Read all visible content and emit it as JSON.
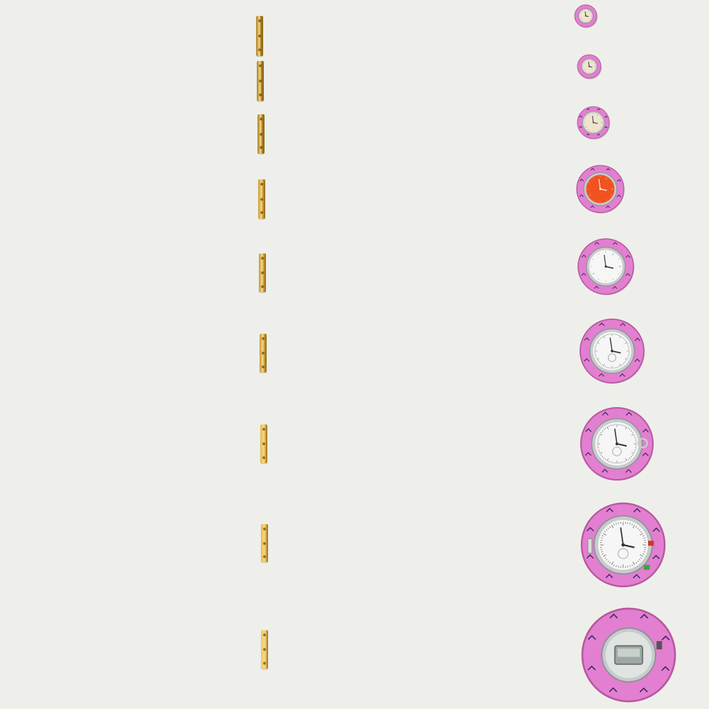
{
  "scene": {
    "background": "#eeefeb",
    "description_items": [
      "brass-plate",
      "pink-stopwatch"
    ]
  },
  "colors": {
    "brass_dark": "#a6781c",
    "brass_mid": "#c9962f",
    "brass_light": "#e6b54a",
    "brass_pale": "#f0c660",
    "pink": "#e27fd0",
    "pink_dark": "#b9579f",
    "chrome": "#c8cacd",
    "dial_cream": "#efe4cf",
    "dial_orange": "#f0531f",
    "dial_white": "#f6f6f6",
    "mark_purple": "#3f2a63",
    "button_red": "#d9322a",
    "button_green": "#3aa345"
  },
  "plates": [
    {
      "tone": "brass_dark"
    },
    {
      "tone": "brass_dark"
    },
    {
      "tone": "brass_dark"
    },
    {
      "tone": "brass_mid"
    },
    {
      "tone": "brass_mid"
    },
    {
      "tone": "brass_mid"
    },
    {
      "tone": "brass_light"
    },
    {
      "tone": "brass_light"
    },
    {
      "tone": "brass_pale"
    }
  ],
  "watches": [
    {
      "dial": "cream",
      "style": "simple"
    },
    {
      "dial": "cream",
      "style": "simple"
    },
    {
      "dial": "cream",
      "style": "simple"
    },
    {
      "dial": "orange",
      "style": "numerals"
    },
    {
      "dial": "white",
      "style": "hands"
    },
    {
      "dial": "white",
      "style": "stopwatch"
    },
    {
      "dial": "white",
      "style": "stopwatch-crown"
    },
    {
      "dial": "white",
      "style": "stopwatch-buttons"
    },
    {
      "dial": "digital",
      "style": "digital"
    }
  ]
}
